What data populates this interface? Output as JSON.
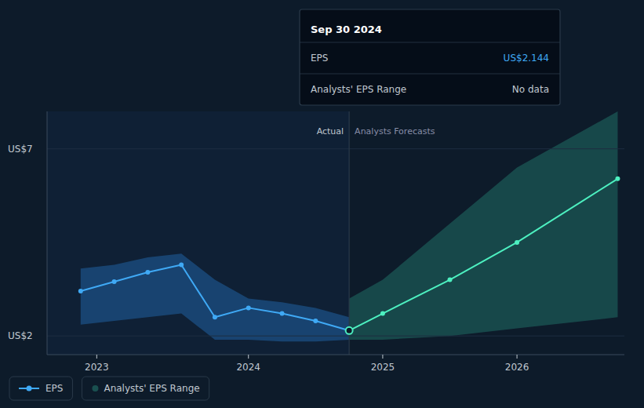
{
  "chart_data": {
    "type": "line",
    "xlim": [
      2022.5,
      2026.8
    ],
    "xticks": [
      {
        "value": 2022.87,
        "label": "2023"
      },
      2024,
      2025,
      2026
    ],
    "ylim": [
      1.5,
      8.0
    ],
    "yticks": [
      {
        "value": 2,
        "label": "US$2"
      },
      {
        "value": 7,
        "label": "US$7"
      }
    ],
    "grid": true,
    "legend": "bottom",
    "divider": 2024.75,
    "annotations": [
      {
        "text": "Actual"
      },
      {
        "text": "Analysts Forecasts"
      }
    ],
    "series": [
      {
        "name": "EPS",
        "type": "line",
        "marker": "circle",
        "color": "#3fa9f5",
        "x": [
          2022.75,
          2023.0,
          2023.25,
          2023.5,
          2023.75,
          2024.0,
          2024.25,
          2024.5,
          2024.75
        ],
        "values": [
          3.2,
          3.45,
          3.7,
          3.9,
          2.5,
          2.75,
          2.6,
          2.4,
          2.144
        ]
      },
      {
        "type": "line",
        "marker": "circle",
        "color": "#4df0c0",
        "x": [
          2024.75,
          2025.0,
          2025.5,
          2026.0,
          2026.75
        ],
        "values": [
          2.144,
          2.6,
          3.5,
          4.5,
          6.2
        ]
      },
      {
        "type": "area",
        "color": "#1a4a7a",
        "x": [
          2022.75,
          2023.0,
          2023.25,
          2023.5,
          2023.75,
          2024.0,
          2024.25,
          2024.5,
          2024.75
        ],
        "upper": [
          3.8,
          3.9,
          4.1,
          4.2,
          3.5,
          3.0,
          2.9,
          2.75,
          2.5
        ],
        "lower": [
          2.3,
          2.4,
          2.5,
          2.6,
          1.9,
          1.9,
          1.85,
          1.85,
          1.9
        ]
      },
      {
        "name": "Analysts' EPS Range",
        "type": "area",
        "color": "#1a5050",
        "x": [
          2024.75,
          2025.0,
          2025.5,
          2026.0,
          2026.75
        ],
        "upper": [
          3.0,
          3.5,
          5.0,
          6.5,
          8.0
        ],
        "lower": [
          1.9,
          1.9,
          2.0,
          2.2,
          2.5
        ]
      }
    ],
    "tooltip": {
      "title": "Sep 30 2024",
      "rows": [
        {
          "label": "EPS",
          "value": "US$2.144"
        },
        {
          "label": "Analysts' EPS Range",
          "value": "No data"
        }
      ]
    }
  }
}
